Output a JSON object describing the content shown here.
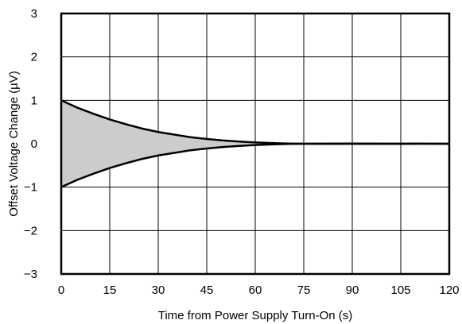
{
  "chart_data": {
    "type": "area",
    "title": "",
    "xlabel": "Time from Power Supply Turn-On (s)",
    "ylabel": "Offset Voltage Change (µV)",
    "xlim": [
      0,
      120
    ],
    "ylim": [
      -3,
      3
    ],
    "xticks": [
      0,
      15,
      30,
      45,
      60,
      75,
      90,
      105,
      120
    ],
    "yticks": [
      3,
      2,
      1,
      0,
      -1,
      -2,
      -3
    ],
    "ytick_labels": [
      "3",
      "2",
      "1",
      "0",
      "−1",
      "−2",
      "−3"
    ],
    "grid": true,
    "fill_color": "#cccccc",
    "line_color": "#000000",
    "series": [
      {
        "x": [
          0,
          5,
          10,
          15,
          20,
          25,
          30,
          35,
          40,
          45,
          50,
          55,
          60,
          65,
          70,
          75,
          80,
          90,
          100,
          110,
          120
        ],
        "values": [
          1.0,
          0.83,
          0.69,
          0.56,
          0.45,
          0.35,
          0.27,
          0.21,
          0.15,
          0.11,
          0.075,
          0.05,
          0.03,
          0.015,
          0.005,
          0.0,
          0.003,
          0.004,
          0.003,
          0.002,
          0.0
        ]
      },
      {
        "x": [
          0,
          5,
          10,
          15,
          20,
          25,
          30,
          35,
          40,
          45,
          50,
          55,
          60,
          65,
          70,
          75,
          80,
          90,
          100,
          110,
          120
        ],
        "values": [
          -1.0,
          -0.83,
          -0.69,
          -0.56,
          -0.45,
          -0.35,
          -0.27,
          -0.21,
          -0.15,
          -0.11,
          -0.075,
          -0.05,
          -0.03,
          -0.015,
          -0.005,
          0.0,
          -0.002,
          -0.002,
          -0.002,
          -0.001,
          0.0
        ]
      }
    ]
  }
}
